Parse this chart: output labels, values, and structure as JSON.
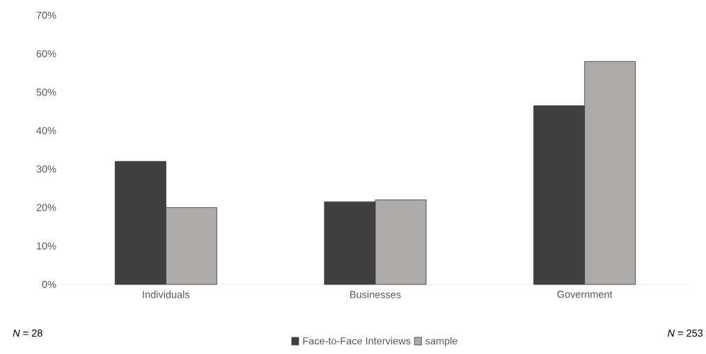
{
  "chart_data": {
    "type": "bar",
    "categories": [
      "Individuals",
      "Businesses",
      "Government"
    ],
    "series": [
      {
        "name": "Face-to-Face Interviews",
        "color": "#404040",
        "values": [
          32,
          21.5,
          46.5
        ]
      },
      {
        "name": "sample",
        "color": "#aeaaaa",
        "values": [
          20,
          22,
          58
        ]
      }
    ],
    "ylim": [
      0,
      70
    ],
    "yticks": [
      {
        "value": 0,
        "label": "0%"
      },
      {
        "value": 10,
        "label": "10%"
      },
      {
        "value": 20,
        "label": "20%"
      },
      {
        "value": 30,
        "label": "30%"
      },
      {
        "value": 40,
        "label": "40%"
      },
      {
        "value": 50,
        "label": "50%"
      },
      {
        "value": 60,
        "label": "60%"
      },
      {
        "value": 70,
        "label": "70%"
      }
    ],
    "legend": "bottom",
    "annotations": [
      "*N* = 28",
      "*N* = 253"
    ]
  }
}
